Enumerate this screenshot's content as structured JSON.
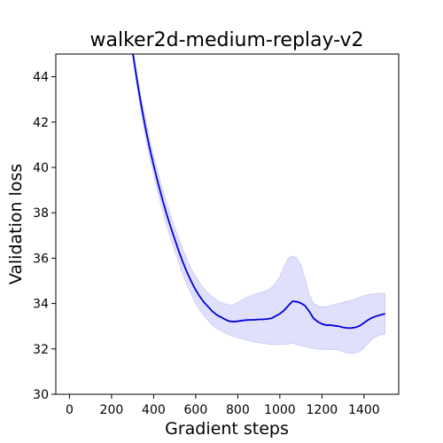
{
  "chart_data": {
    "type": "line",
    "title": "walker2d-medium-replay-v2",
    "xlabel": "Gradient steps",
    "ylabel": "Validation loss",
    "xlim": [
      -65,
      1565
    ],
    "ylim": [
      30,
      45
    ],
    "xticks": [
      0,
      200,
      400,
      600,
      800,
      1000,
      1200,
      1400
    ],
    "yticks": [
      30,
      32,
      34,
      36,
      38,
      40,
      42,
      44
    ],
    "grid": false,
    "legend": "none",
    "colors": {
      "line": "#0000dd",
      "band": "#e0e0fc",
      "band_stroke": "#c8c8f5"
    },
    "x": [
      280,
      300,
      320,
      340,
      360,
      380,
      400,
      420,
      440,
      460,
      480,
      500,
      520,
      540,
      560,
      580,
      600,
      620,
      640,
      660,
      680,
      700,
      720,
      740,
      760,
      780,
      800,
      820,
      840,
      860,
      880,
      900,
      920,
      940,
      960,
      980,
      1000,
      1020,
      1040,
      1060,
      1080,
      1100,
      1120,
      1140,
      1160,
      1180,
      1200,
      1220,
      1240,
      1260,
      1280,
      1300,
      1320,
      1340,
      1360,
      1380,
      1400,
      1420,
      1440,
      1460,
      1480,
      1500
    ],
    "series": [
      {
        "values": [
          46.4,
          45.1,
          43.9,
          42.8,
          41.8,
          40.9,
          40.1,
          39.35,
          38.65,
          38.0,
          37.4,
          36.85,
          36.3,
          35.8,
          35.35,
          34.95,
          34.6,
          34.3,
          34.05,
          33.85,
          33.65,
          33.5,
          33.4,
          33.3,
          33.22,
          33.2,
          33.22,
          33.25,
          33.27,
          33.28,
          33.28,
          33.3,
          33.3,
          33.32,
          33.35,
          33.45,
          33.55,
          33.7,
          33.9,
          34.1,
          34.08,
          34.02,
          33.9,
          33.65,
          33.35,
          33.2,
          33.1,
          33.05,
          33.05,
          33.02,
          33.0,
          32.95,
          32.92,
          32.92,
          32.95,
          33.02,
          33.15,
          33.28,
          33.38,
          33.45,
          33.5,
          33.55
        ],
        "upper": [
          46.6,
          45.3,
          44.2,
          43.1,
          42.2,
          41.3,
          40.5,
          39.8,
          39.1,
          38.5,
          37.9,
          37.35,
          36.85,
          36.35,
          35.9,
          35.5,
          35.2,
          34.9,
          34.65,
          34.45,
          34.3,
          34.15,
          34.05,
          33.98,
          33.93,
          33.95,
          34.05,
          34.15,
          34.25,
          34.33,
          34.4,
          34.45,
          34.5,
          34.58,
          34.7,
          34.9,
          35.2,
          35.6,
          36.0,
          36.1,
          36.0,
          35.7,
          35.1,
          34.4,
          34.0,
          33.9,
          33.85,
          33.85,
          33.9,
          33.95,
          34.0,
          34.05,
          34.1,
          34.15,
          34.2,
          34.28,
          34.35,
          34.4,
          34.42,
          34.44,
          34.45,
          34.45
        ],
        "lower": [
          46.2,
          44.9,
          43.6,
          42.5,
          41.4,
          40.5,
          39.7,
          38.9,
          38.2,
          37.5,
          36.9,
          36.35,
          35.8,
          35.25,
          34.8,
          34.4,
          34.0,
          33.7,
          33.45,
          33.25,
          33.05,
          32.9,
          32.8,
          32.7,
          32.62,
          32.55,
          32.5,
          32.45,
          32.4,
          32.35,
          32.3,
          32.28,
          32.25,
          32.22,
          32.2,
          32.2,
          32.2,
          32.2,
          32.22,
          32.25,
          32.2,
          32.15,
          32.1,
          32.05,
          32.02,
          32.0,
          31.98,
          31.98,
          31.98,
          31.98,
          31.95,
          31.88,
          31.82,
          31.8,
          31.82,
          31.9,
          32.05,
          32.25,
          32.45,
          32.55,
          32.62,
          32.65
        ]
      }
    ]
  }
}
